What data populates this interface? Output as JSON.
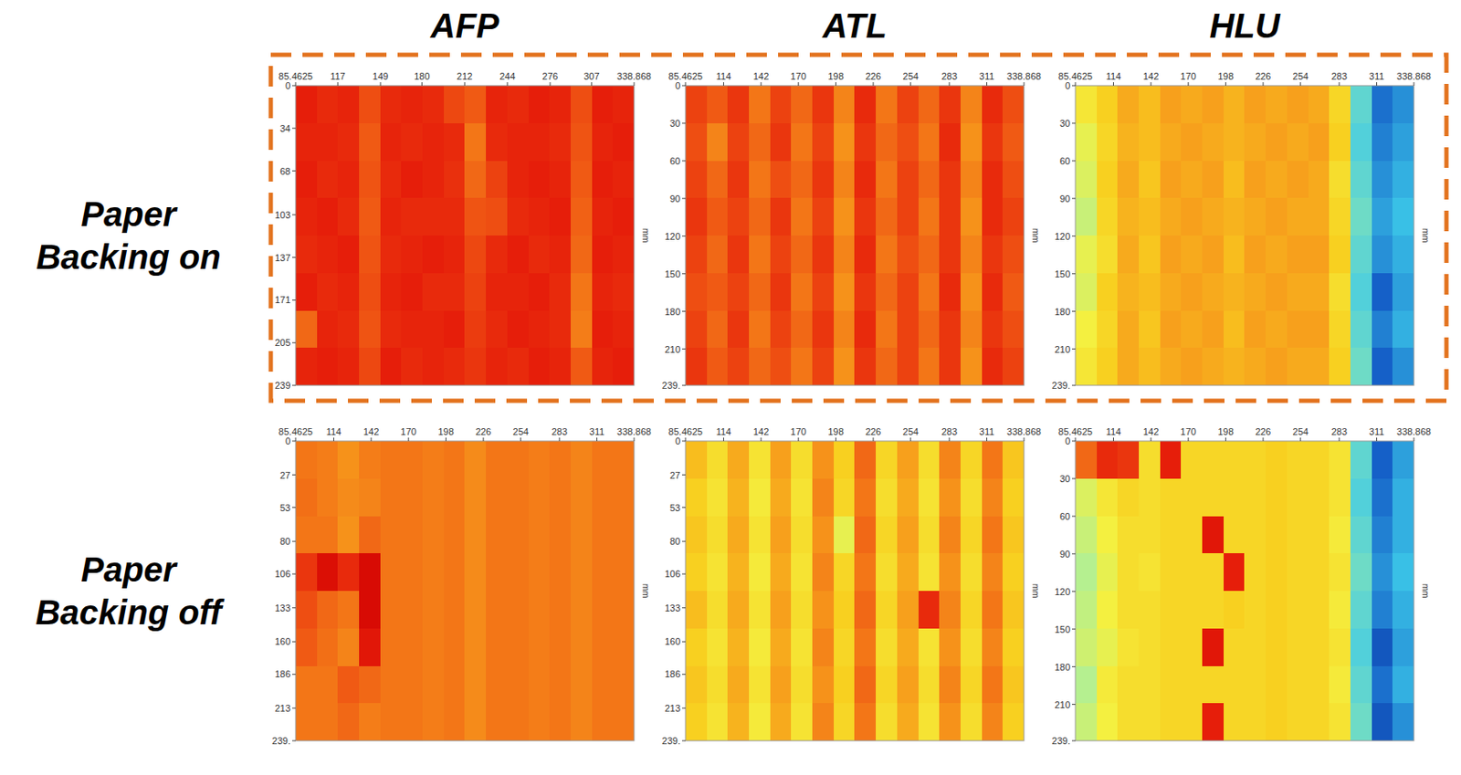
{
  "figure": {
    "column_titles": [
      "AFP",
      "ATL",
      "HLU"
    ],
    "row_labels": [
      "Paper Backing on",
      "Paper Backing off"
    ]
  },
  "chart_data": [
    {
      "type": "heatmap",
      "y_label": "mm",
      "xlim": [
        85.4625,
        338.868
      ],
      "ylim": [
        0,
        239
      ],
      "zlim": [
        0,
        100
      ],
      "xticks": [
        85.4625,
        117,
        149,
        180,
        212,
        244,
        276,
        307,
        338.868
      ],
      "yticks": [
        0,
        34,
        68,
        103,
        137,
        171,
        205,
        {
          "value": 239,
          "label": "239"
        }
      ],
      "x": [
        93.38,
        109.22,
        125.06,
        140.89,
        156.73,
        172.57,
        188.41,
        204.25,
        220.08,
        235.92,
        251.76,
        267.6,
        283.43,
        299.27,
        315.11,
        330.95
      ],
      "y": [
        14.94,
        44.81,
        74.69,
        104.56,
        134.44,
        164.31,
        194.19,
        224.06
      ],
      "z": [
        [
          92,
          90,
          91,
          84,
          90,
          91,
          90,
          85,
          82,
          91,
          90,
          92,
          91,
          84,
          92,
          91
        ],
        [
          91,
          91,
          90,
          82,
          91,
          90,
          91,
          90,
          78,
          90,
          91,
          91,
          90,
          83,
          91,
          92
        ],
        [
          92,
          90,
          91,
          83,
          90,
          92,
          91,
          89,
          80,
          86,
          91,
          92,
          91,
          82,
          92,
          91
        ],
        [
          91,
          92,
          90,
          82,
          91,
          90,
          90,
          90,
          83,
          84,
          90,
          91,
          92,
          81,
          91,
          92
        ],
        [
          90,
          91,
          92,
          83,
          90,
          91,
          92,
          91,
          85,
          90,
          92,
          90,
          91,
          80,
          92,
          91
        ],
        [
          92,
          90,
          91,
          84,
          91,
          92,
          90,
          90,
          86,
          91,
          91,
          92,
          90,
          78,
          91,
          90
        ],
        [
          80,
          91,
          90,
          83,
          90,
          91,
          91,
          92,
          87,
          90,
          92,
          91,
          90,
          77,
          92,
          91
        ],
        [
          91,
          92,
          91,
          85,
          92,
          90,
          91,
          90,
          88,
          91,
          90,
          92,
          91,
          82,
          91,
          92
        ]
      ]
    },
    {
      "type": "heatmap",
      "y_label": "mm",
      "xlim": [
        85.4625,
        338.868
      ],
      "ylim": [
        0,
        239
      ],
      "zlim": [
        0,
        100
      ],
      "xticks": [
        85.4625,
        114,
        142,
        170,
        198,
        226,
        254,
        283,
        311,
        338.868
      ],
      "yticks": [
        0,
        30,
        60,
        90,
        120,
        150,
        180,
        210,
        {
          "value": 239,
          "label": "239."
        }
      ],
      "x": [
        93.38,
        109.22,
        125.06,
        140.89,
        156.73,
        172.57,
        188.41,
        204.25,
        220.08,
        235.92,
        251.76,
        267.6,
        283.43,
        299.27,
        315.11,
        330.95
      ],
      "y": [
        14.94,
        44.81,
        74.69,
        104.56,
        134.44,
        164.31,
        194.19,
        224.06
      ],
      "z": [
        [
          86,
          82,
          88,
          78,
          86,
          80,
          88,
          76,
          90,
          78,
          86,
          80,
          88,
          76,
          90,
          84
        ],
        [
          84,
          76,
          86,
          80,
          88,
          78,
          86,
          74,
          88,
          80,
          84,
          78,
          90,
          74,
          88,
          82
        ],
        [
          86,
          80,
          88,
          78,
          84,
          80,
          88,
          76,
          90,
          78,
          86,
          80,
          88,
          76,
          90,
          84
        ],
        [
          88,
          82,
          86,
          80,
          88,
          78,
          86,
          74,
          88,
          80,
          86,
          78,
          88,
          74,
          90,
          86
        ],
        [
          86,
          80,
          88,
          78,
          86,
          80,
          88,
          76,
          90,
          78,
          84,
          80,
          88,
          76,
          88,
          84
        ],
        [
          84,
          82,
          86,
          80,
          88,
          78,
          86,
          74,
          88,
          80,
          86,
          78,
          90,
          74,
          90,
          82
        ],
        [
          86,
          80,
          88,
          78,
          86,
          80,
          88,
          76,
          90,
          78,
          86,
          80,
          88,
          76,
          88,
          84
        ],
        [
          88,
          82,
          86,
          80,
          84,
          78,
          86,
          74,
          88,
          80,
          86,
          78,
          88,
          74,
          90,
          86
        ]
      ]
    },
    {
      "type": "heatmap",
      "y_label": "mm",
      "xlim": [
        85.4625,
        338.868
      ],
      "ylim": [
        0,
        239
      ],
      "zlim": [
        0,
        100
      ],
      "xticks": [
        85.4625,
        114,
        142,
        170,
        198,
        226,
        254,
        283,
        311,
        338.868
      ],
      "yticks": [
        0,
        30,
        60,
        90,
        120,
        150,
        180,
        210,
        {
          "value": 239,
          "label": "239."
        }
      ],
      "x": [
        93.38,
        109.22,
        125.06,
        140.89,
        156.73,
        172.57,
        188.41,
        204.25,
        220.08,
        235.92,
        251.76,
        267.6,
        283.43,
        299.27,
        315.11,
        330.95
      ],
      "y": [
        14.94,
        44.81,
        74.69,
        104.56,
        134.44,
        164.31,
        194.19,
        224.06
      ],
      "z": [
        [
          55,
          62,
          70,
          66,
          72,
          70,
          72,
          68,
          72,
          70,
          72,
          70,
          60,
          30,
          14,
          18
        ],
        [
          50,
          60,
          68,
          66,
          70,
          72,
          70,
          68,
          70,
          72,
          70,
          72,
          62,
          28,
          16,
          20
        ],
        [
          48,
          62,
          70,
          64,
          72,
          70,
          72,
          66,
          72,
          70,
          72,
          70,
          58,
          30,
          18,
          22
        ],
        [
          45,
          60,
          68,
          66,
          70,
          72,
          70,
          68,
          70,
          72,
          70,
          70,
          60,
          32,
          20,
          24
        ],
        [
          50,
          58,
          70,
          64,
          72,
          70,
          72,
          66,
          72,
          70,
          72,
          72,
          62,
          30,
          18,
          22
        ],
        [
          48,
          62,
          68,
          66,
          70,
          72,
          70,
          68,
          70,
          72,
          70,
          70,
          58,
          28,
          12,
          20
        ],
        [
          52,
          60,
          70,
          64,
          72,
          70,
          72,
          66,
          72,
          70,
          72,
          72,
          60,
          30,
          16,
          22
        ],
        [
          55,
          62,
          70,
          66,
          70,
          72,
          70,
          68,
          70,
          72,
          70,
          70,
          62,
          32,
          12,
          18
        ]
      ]
    },
    {
      "type": "heatmap",
      "y_label": "mm",
      "xlim": [
        85.4625,
        338.868
      ],
      "ylim": [
        0,
        239
      ],
      "zlim": [
        0,
        100
      ],
      "xticks": [
        85.4625,
        114,
        142,
        170,
        198,
        226,
        254,
        283,
        311,
        338.868
      ],
      "yticks": [
        0,
        27,
        53,
        80,
        106,
        133,
        160,
        186,
        213,
        {
          "value": 239,
          "label": "239."
        }
      ],
      "x": [
        93.38,
        109.22,
        125.06,
        140.89,
        156.73,
        172.57,
        188.41,
        204.25,
        220.08,
        235.92,
        251.76,
        267.6,
        283.43,
        299.27,
        315.11,
        330.95
      ],
      "y": [
        14.94,
        44.81,
        74.69,
        104.56,
        134.44,
        164.31,
        194.19,
        224.06
      ],
      "z": [
        [
          78,
          77,
          74,
          77,
          78,
          78,
          77,
          78,
          75,
          78,
          78,
          77,
          78,
          76,
          78,
          78
        ],
        [
          79,
          77,
          75,
          76,
          78,
          78,
          77,
          78,
          75,
          78,
          78,
          77,
          78,
          76,
          78,
          78
        ],
        [
          78,
          78,
          74,
          80,
          78,
          78,
          77,
          78,
          75,
          78,
          78,
          77,
          78,
          76,
          78,
          78
        ],
        [
          88,
          96,
          90,
          97,
          78,
          78,
          77,
          78,
          75,
          78,
          78,
          77,
          78,
          76,
          78,
          78
        ],
        [
          84,
          80,
          78,
          97,
          78,
          78,
          77,
          78,
          75,
          78,
          78,
          77,
          78,
          76,
          78,
          78
        ],
        [
          82,
          79,
          76,
          94,
          78,
          78,
          77,
          78,
          75,
          78,
          78,
          77,
          78,
          76,
          78,
          78
        ],
        [
          78,
          78,
          82,
          80,
          78,
          78,
          77,
          78,
          75,
          78,
          78,
          77,
          78,
          76,
          78,
          78
        ],
        [
          78,
          78,
          80,
          77,
          78,
          78,
          77,
          78,
          75,
          78,
          78,
          77,
          78,
          76,
          78,
          78
        ]
      ]
    },
    {
      "type": "heatmap",
      "y_label": "mm",
      "xlim": [
        85.4625,
        338.868
      ],
      "ylim": [
        0,
        239
      ],
      "zlim": [
        0,
        100
      ],
      "xticks": [
        85.4625,
        114,
        142,
        170,
        198,
        226,
        254,
        283,
        311,
        338.868
      ],
      "yticks": [
        0,
        27,
        53,
        80,
        106,
        133,
        160,
        186,
        213,
        {
          "value": 239,
          "label": "239."
        }
      ],
      "x": [
        93.38,
        109.22,
        125.06,
        140.89,
        156.73,
        172.57,
        188.41,
        204.25,
        220.08,
        235.92,
        251.76,
        267.6,
        283.43,
        299.27,
        315.11,
        330.95
      ],
      "y": [
        14.94,
        44.81,
        74.69,
        104.56,
        134.44,
        164.31,
        194.19,
        224.06
      ],
      "z": [
        [
          66,
          58,
          70,
          56,
          72,
          58,
          74,
          62,
          80,
          60,
          72,
          58,
          76,
          60,
          78,
          64
        ],
        [
          62,
          56,
          68,
          54,
          70,
          56,
          76,
          60,
          78,
          58,
          70,
          56,
          74,
          58,
          76,
          62
        ],
        [
          64,
          58,
          70,
          56,
          72,
          58,
          74,
          50,
          80,
          60,
          72,
          58,
          76,
          60,
          78,
          64
        ],
        [
          62,
          56,
          68,
          54,
          70,
          56,
          76,
          60,
          78,
          58,
          70,
          56,
          74,
          58,
          76,
          62
        ],
        [
          66,
          58,
          70,
          56,
          72,
          58,
          74,
          62,
          80,
          60,
          72,
          90,
          76,
          60,
          78,
          64
        ],
        [
          62,
          56,
          68,
          54,
          70,
          56,
          76,
          60,
          78,
          58,
          70,
          56,
          74,
          58,
          76,
          62
        ],
        [
          64,
          58,
          70,
          56,
          72,
          58,
          74,
          62,
          80,
          60,
          72,
          58,
          76,
          60,
          78,
          64
        ],
        [
          62,
          56,
          68,
          54,
          70,
          56,
          76,
          60,
          78,
          58,
          70,
          56,
          74,
          58,
          76,
          62
        ]
      ]
    },
    {
      "type": "heatmap",
      "y_label": "mm",
      "xlim": [
        85.4625,
        338.868
      ],
      "ylim": [
        0,
        239
      ],
      "zlim": [
        0,
        100
      ],
      "xticks": [
        85.4625,
        114,
        142,
        170,
        198,
        226,
        254,
        283,
        311,
        338.868
      ],
      "yticks": [
        0,
        30,
        60,
        90,
        120,
        150,
        180,
        210,
        {
          "value": 239,
          "label": "239."
        }
      ],
      "x": [
        93.38,
        109.22,
        125.06,
        140.89,
        156.73,
        172.57,
        188.41,
        204.25,
        220.08,
        235.92,
        251.76,
        267.6,
        283.43,
        299.27,
        315.11,
        330.95
      ],
      "y": [
        14.94,
        44.81,
        74.69,
        104.56,
        134.44,
        164.31,
        194.19,
        224.06
      ],
      "z": [
        [
          80,
          90,
          88,
          58,
          92,
          60,
          60,
          60,
          60,
          62,
          60,
          60,
          56,
          30,
          12,
          20
        ],
        [
          48,
          55,
          60,
          58,
          60,
          60,
          60,
          60,
          60,
          62,
          60,
          60,
          56,
          28,
          14,
          22
        ],
        [
          45,
          52,
          58,
          58,
          60,
          60,
          94,
          60,
          60,
          62,
          60,
          60,
          54,
          30,
          16,
          22
        ],
        [
          42,
          50,
          58,
          56,
          60,
          60,
          60,
          92,
          60,
          62,
          60,
          60,
          56,
          32,
          18,
          24
        ],
        [
          44,
          52,
          58,
          58,
          60,
          60,
          60,
          62,
          60,
          62,
          60,
          60,
          54,
          30,
          16,
          22
        ],
        [
          46,
          50,
          56,
          58,
          60,
          60,
          94,
          60,
          60,
          62,
          60,
          60,
          56,
          28,
          10,
          20
        ],
        [
          42,
          54,
          58,
          58,
          60,
          60,
          60,
          60,
          60,
          62,
          60,
          60,
          54,
          30,
          14,
          22
        ],
        [
          45,
          52,
          58,
          58,
          60,
          60,
          92,
          60,
          60,
          62,
          60,
          60,
          56,
          32,
          10,
          18
        ]
      ]
    }
  ]
}
